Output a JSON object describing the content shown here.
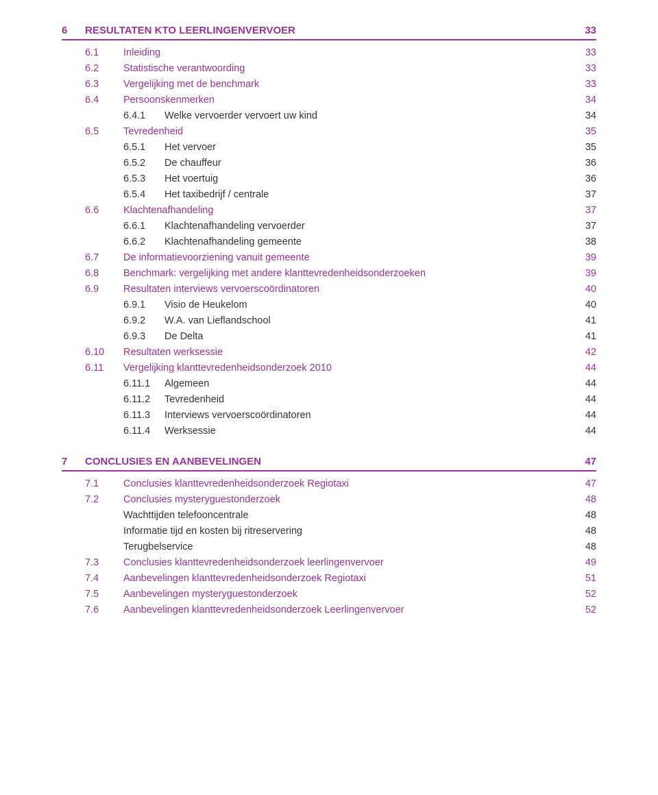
{
  "colors": {
    "accent": "#993399",
    "body_text": "#333333",
    "background": "#ffffff",
    "rule": "#993399"
  },
  "typography": {
    "font_family": "Arial",
    "chapter_fontsize_pt": 11.5,
    "chapter_weight": "bold",
    "row_fontsize_pt": 11
  },
  "chapters": [
    {
      "num": "6",
      "title": "RESULTATEN KTO LEERLINGENVERVOER",
      "page": "33",
      "items": [
        {
          "lvl": 2,
          "num": "6.1",
          "title": "Inleiding",
          "page": "33"
        },
        {
          "lvl": 2,
          "num": "6.2",
          "title": "Statistische verantwoording",
          "page": "33"
        },
        {
          "lvl": 2,
          "num": "6.3",
          "title": "Vergelijking met de benchmark",
          "page": "33"
        },
        {
          "lvl": 2,
          "num": "6.4",
          "title": "Persoonskenmerken",
          "page": "34"
        },
        {
          "lvl": 3,
          "num": "6.4.1",
          "title": "Welke vervoerder vervoert uw kind",
          "page": "34"
        },
        {
          "lvl": 2,
          "num": "6.5",
          "title": "Tevredenheid",
          "page": "35"
        },
        {
          "lvl": 3,
          "num": "6.5.1",
          "title": "Het vervoer",
          "page": "35"
        },
        {
          "lvl": 3,
          "num": "6.5.2",
          "title": "De chauffeur",
          "page": "36"
        },
        {
          "lvl": 3,
          "num": "6.5.3",
          "title": "Het voertuig",
          "page": "36"
        },
        {
          "lvl": 3,
          "num": "6.5.4",
          "title": "Het taxibedrijf / centrale",
          "page": "37"
        },
        {
          "lvl": 2,
          "num": "6.6",
          "title": "Klachtenafhandeling",
          "page": "37"
        },
        {
          "lvl": 3,
          "num": "6.6.1",
          "title": "Klachtenafhandeling vervoerder",
          "page": "37"
        },
        {
          "lvl": 3,
          "num": "6.6.2",
          "title": "Klachtenafhandeling gemeente",
          "page": "38"
        },
        {
          "lvl": 2,
          "num": "6.7",
          "title": "De informatievoorziening vanuit gemeente",
          "page": "39"
        },
        {
          "lvl": 2,
          "num": "6.8",
          "title": "Benchmark: vergelijking met andere klanttevredenheidsonderzoeken",
          "page": "39"
        },
        {
          "lvl": 2,
          "num": "6.9",
          "title": "Resultaten interviews vervoerscoördinatoren",
          "page": "40"
        },
        {
          "lvl": 3,
          "num": "6.9.1",
          "title": "Visio de Heukelom",
          "page": "40"
        },
        {
          "lvl": 3,
          "num": "6.9.2",
          "title": "W.A. van Lieflandschool",
          "page": "41"
        },
        {
          "lvl": 3,
          "num": "6.9.3",
          "title": "De Delta",
          "page": "41"
        },
        {
          "lvl": 2,
          "num": "6.10",
          "title": "Resultaten werksessie",
          "page": "42"
        },
        {
          "lvl": 2,
          "num": "6.11",
          "title": "Vergelijking klanttevredenheidsonderzoek 2010",
          "page": "44"
        },
        {
          "lvl": 3,
          "num": "6.11.1",
          "title": "Algemeen",
          "page": "44"
        },
        {
          "lvl": 3,
          "num": "6.11.2",
          "title": "Tevredenheid",
          "page": "44"
        },
        {
          "lvl": 3,
          "num": "6.11.3",
          "title": "Interviews vervoerscoördinatoren",
          "page": "44"
        },
        {
          "lvl": 3,
          "num": "6.11.4",
          "title": "Werksessie",
          "page": "44"
        }
      ]
    },
    {
      "num": "7",
      "title": "CONCLUSIES EN AANBEVELINGEN",
      "page": "47",
      "items": [
        {
          "lvl": 2,
          "num": "7.1",
          "title": "Conclusies klanttevredenheidsonderzoek Regiotaxi",
          "page": "47"
        },
        {
          "lvl": 2,
          "num": "7.2",
          "title": "Conclusies mysteryguestonderzoek",
          "page": "48"
        },
        {
          "lvl": 3,
          "num": "",
          "title": "Wachttijden telefooncentrale",
          "page": "48"
        },
        {
          "lvl": 3,
          "num": "",
          "title": "Informatie tijd en kosten bij ritreservering",
          "page": "48"
        },
        {
          "lvl": 3,
          "num": "",
          "title": "Terugbelservice",
          "page": "48"
        },
        {
          "lvl": 2,
          "num": "7.3",
          "title": "Conclusies klanttevredenheidsonderzoek leerlingenvervoer",
          "page": "49"
        },
        {
          "lvl": 2,
          "num": "7.4",
          "title": "Aanbevelingen klanttevredenheidsonderzoek Regiotaxi",
          "page": "51"
        },
        {
          "lvl": 2,
          "num": "7.5",
          "title": "Aanbevelingen mysteryguestonderzoek",
          "page": "52"
        },
        {
          "lvl": 2,
          "num": "7.6",
          "title": "Aanbevelingen klanttevredenheidsonderzoek Leerlingenvervoer",
          "page": "52"
        }
      ]
    }
  ]
}
